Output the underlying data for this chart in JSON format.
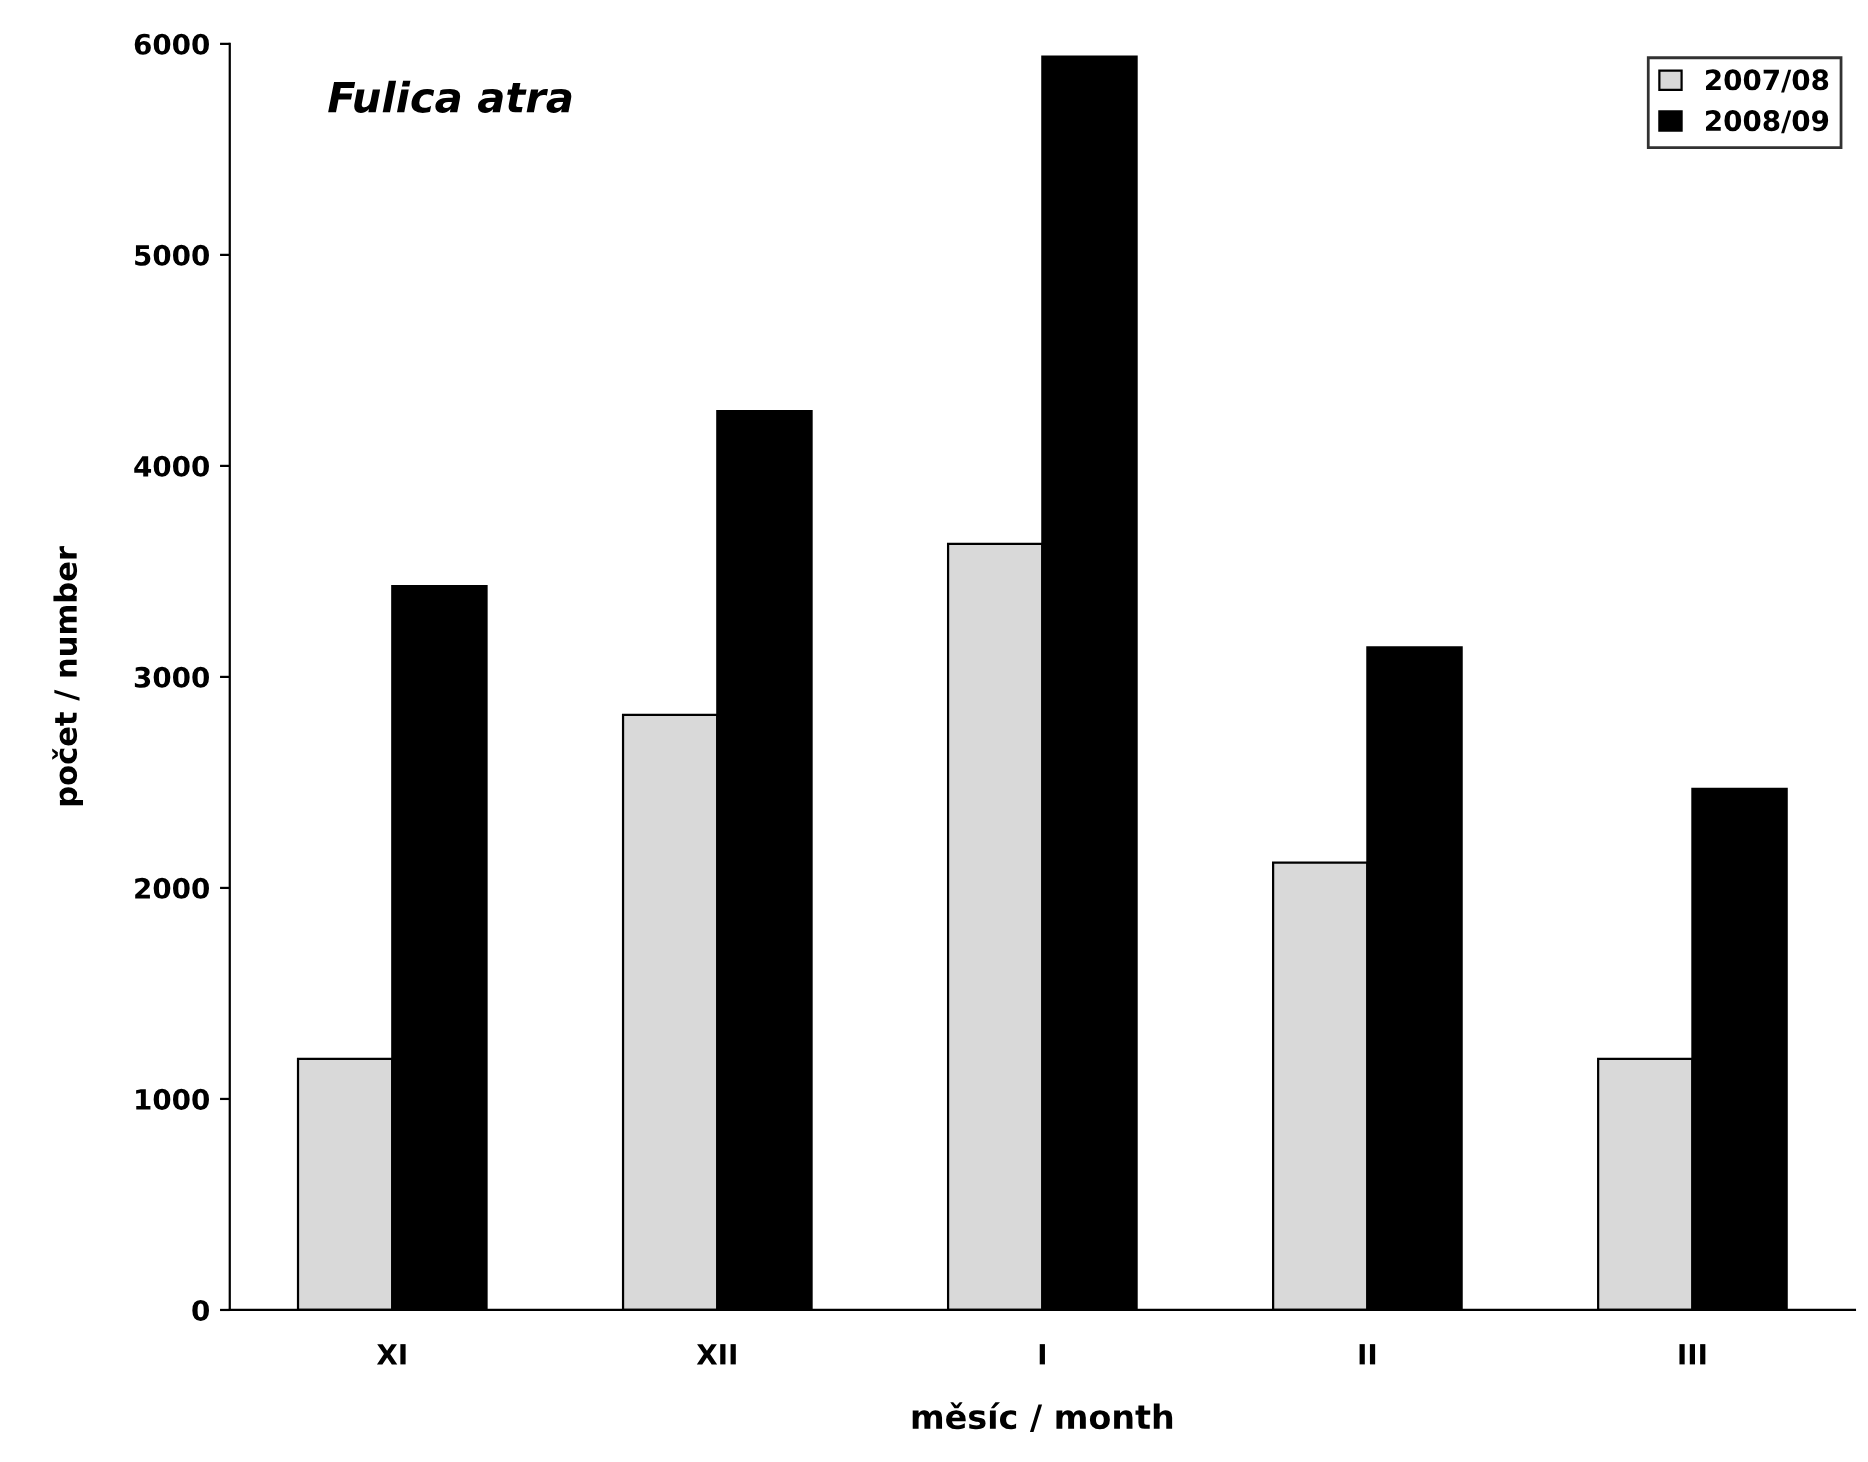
{
  "chart_data": {
    "type": "bar",
    "title": "Fulica atra",
    "xlabel": "měsíc / month",
    "ylabel": "počet / number",
    "categories": [
      "XI",
      "XII",
      "I",
      "II",
      "III"
    ],
    "series": [
      {
        "name": "2007/08",
        "color": "#d9d9d9",
        "values": [
          1190,
          2820,
          3630,
          2120,
          1190
        ]
      },
      {
        "name": "2008/09",
        "color": "#000000",
        "values": [
          3430,
          4260,
          5940,
          3140,
          2470
        ]
      }
    ],
    "ylim": [
      0,
      6000
    ],
    "yticks": [
      0,
      1000,
      2000,
      3000,
      4000,
      5000,
      6000
    ],
    "grid": false,
    "legend": "top right"
  }
}
